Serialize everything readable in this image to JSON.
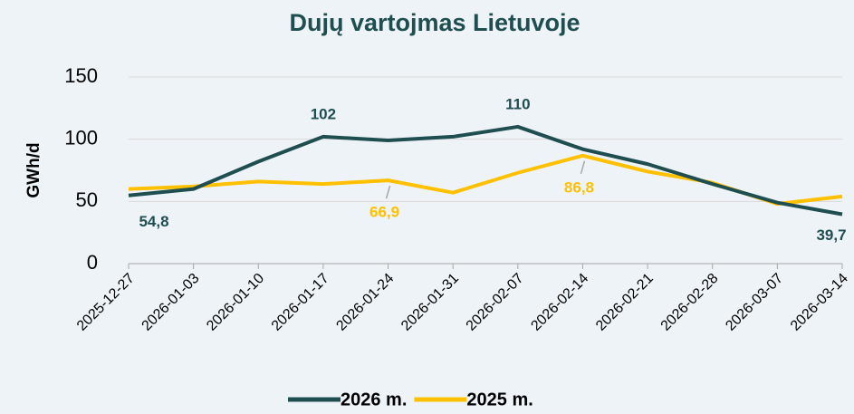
{
  "chart_data": {
    "type": "line",
    "title": "Dujų vartojmas Lietuvoje",
    "y_label": "GWh/d",
    "categories": [
      "2025-12-27",
      "2026-01-03",
      "2026-01-10",
      "2026-01-17",
      "2026-01-24",
      "2026-01-31",
      "2026-02-07",
      "2026-02-14",
      "2026-02-21",
      "2026-02-28",
      "2026-03-07",
      "2026-03-14"
    ],
    "series": [
      {
        "name": "2026 m.",
        "color": "#1f4e50",
        "values": [
          54.8,
          60,
          82,
          102,
          99,
          102,
          110,
          92,
          80,
          64,
          49,
          39.7
        ],
        "value_labels": [
          "54,8",
          null,
          null,
          "102",
          null,
          null,
          "110",
          null,
          null,
          null,
          null,
          "39,7"
        ]
      },
      {
        "name": "2025 m.",
        "color": "#ffc000",
        "values": [
          60,
          62,
          66,
          64,
          66.9,
          57,
          73,
          86.8,
          74,
          65,
          48,
          54
        ],
        "value_labels": [
          null,
          null,
          null,
          null,
          "66,9",
          null,
          null,
          "86,8",
          null,
          null,
          null,
          null
        ]
      }
    ],
    "ylim": [
      0,
      150
    ],
    "yticks": [
      0,
      50,
      100,
      150
    ],
    "grid": true,
    "legend": "bottom"
  }
}
